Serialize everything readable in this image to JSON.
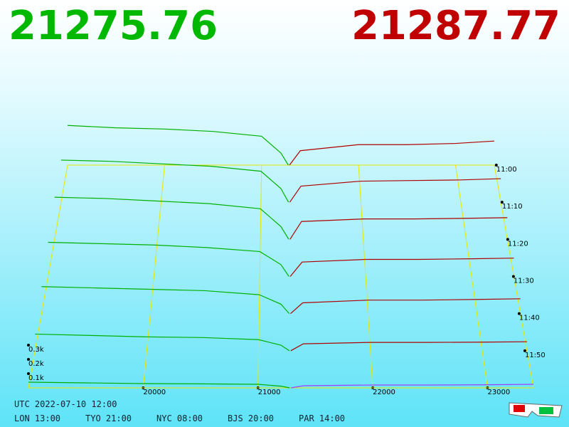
{
  "header": {
    "bid_price": "21275.76",
    "ask_price": "21287.77"
  },
  "chart_data": {
    "type": "depth3d",
    "xlim": [
      19000,
      23400
    ],
    "xticks": [
      20000,
      21000,
      22000,
      23000
    ],
    "yticks": [
      {
        "value": 100,
        "label": "0.1k"
      },
      {
        "value": 200,
        "label": "0.2k"
      },
      {
        "value": 300,
        "label": "0.3k"
      }
    ],
    "times": [
      "11:00",
      "11:10",
      "11:20",
      "11:30",
      "11:40",
      "11:50",
      null
    ],
    "bid_prices": [
      19000,
      19500,
      20000,
      20500,
      21000,
      21200,
      21276
    ],
    "ask_prices": [
      21288,
      21400,
      22000,
      22500,
      23000,
      23400
    ],
    "bid_color": "#00b000",
    "ask_color": "#b00000",
    "grid_color": "#e8e800",
    "bids": [
      [
        330,
        310,
        300,
        280,
        240,
        100,
        0
      ],
      [
        340,
        330,
        310,
        290,
        250,
        110,
        0
      ],
      [
        330,
        320,
        300,
        280,
        240,
        100,
        0
      ],
      [
        260,
        250,
        240,
        220,
        190,
        90,
        0
      ],
      [
        200,
        190,
        180,
        170,
        140,
        70,
        0
      ],
      [
        120,
        110,
        100,
        95,
        80,
        40,
        0
      ],
      [
        40,
        35,
        30,
        28,
        25,
        12,
        0
      ]
    ],
    "asks": [
      [
        0,
        120,
        170,
        170,
        180,
        200
      ],
      [
        0,
        130,
        170,
        175,
        180,
        190
      ],
      [
        0,
        140,
        160,
        160,
        165,
        170
      ],
      [
        0,
        110,
        130,
        130,
        135,
        140
      ],
      [
        0,
        80,
        100,
        100,
        105,
        110
      ],
      [
        0,
        50,
        60,
        60,
        62,
        65
      ],
      [
        0,
        15,
        20,
        20,
        22,
        25
      ]
    ]
  },
  "footer": {
    "utc": "UTC 2022-07-10 12:00",
    "clocks": [
      "LON 13:00",
      "TYO 21:00",
      "NYC 08:00",
      "BJS 20:00",
      "PAR 14:00"
    ]
  }
}
